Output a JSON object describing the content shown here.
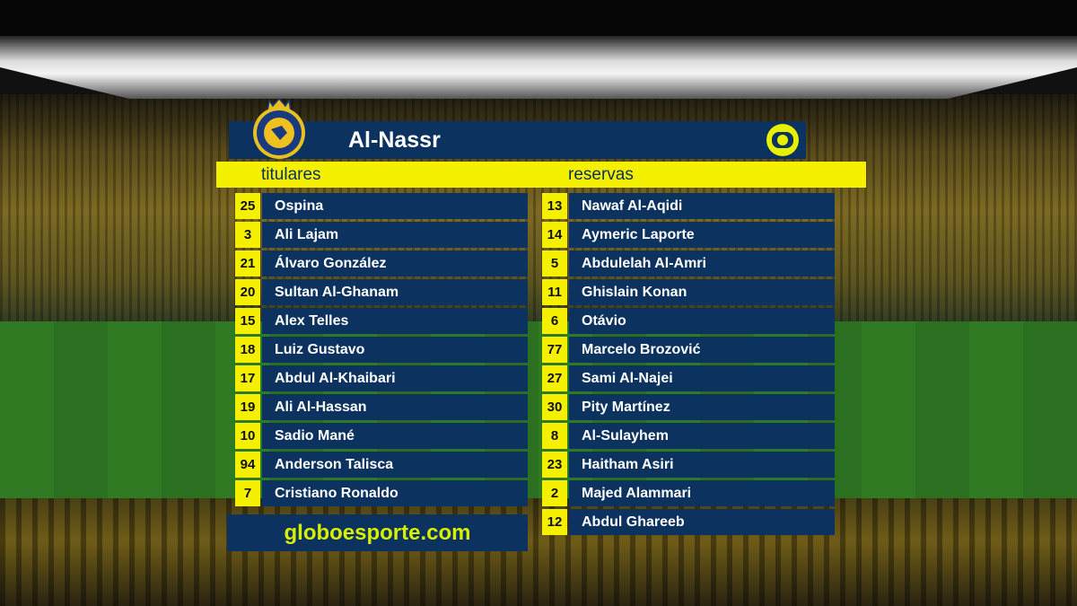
{
  "team": {
    "name": "Al-Nassr",
    "crest_text": "AL NASSR"
  },
  "sections": {
    "starters": "titulares",
    "reserves": "reservas"
  },
  "starters": [
    {
      "number": "25",
      "name": "Ospina"
    },
    {
      "number": "3",
      "name": "Ali Lajam"
    },
    {
      "number": "21",
      "name": "Álvaro González"
    },
    {
      "number": "20",
      "name": "Sultan Al-Ghanam"
    },
    {
      "number": "15",
      "name": "Alex Telles"
    },
    {
      "number": "18",
      "name": "Luiz Gustavo"
    },
    {
      "number": "17",
      "name": "Abdul Al-Khaibari"
    },
    {
      "number": "19",
      "name": "Ali Al-Hassan"
    },
    {
      "number": "10",
      "name": "Sadio Mané"
    },
    {
      "number": "94",
      "name": "Anderson Talisca"
    },
    {
      "number": "7",
      "name": "Cristiano Ronaldo"
    }
  ],
  "reserves": [
    {
      "number": "13",
      "name": "Nawaf Al-Aqidi"
    },
    {
      "number": "14",
      "name": "Aymeric Laporte"
    },
    {
      "number": "5",
      "name": "Abdulelah Al-Amri"
    },
    {
      "number": "11",
      "name": "Ghislain Konan"
    },
    {
      "number": "6",
      "name": "Otávio"
    },
    {
      "number": "77",
      "name": "Marcelo Brozović"
    },
    {
      "number": "27",
      "name": "Sami Al-Najei"
    },
    {
      "number": "30",
      "name": "Pity Martínez"
    },
    {
      "number": "8",
      "name": "Al-Sulayhem"
    },
    {
      "number": "23",
      "name": "Haitham Asiri"
    },
    {
      "number": "2",
      "name": "Majed Alammari"
    },
    {
      "number": "12",
      "name": "Abdul Ghareeb"
    }
  ],
  "footer": {
    "site": "globoesporte.com"
  },
  "colors": {
    "navy": "#0c3360",
    "yellow": "#f4f000",
    "logo_green_yellow": "#d8f000"
  },
  "icons": {
    "broadcaster": "globo-logo-icon",
    "club": "al-nassr-crest-icon"
  }
}
